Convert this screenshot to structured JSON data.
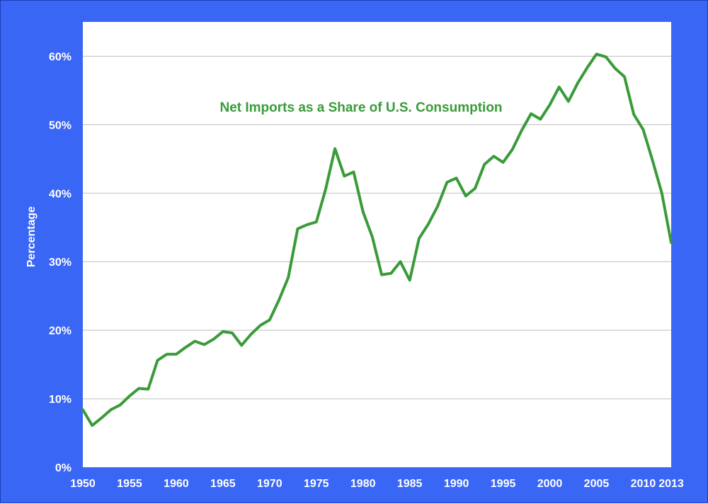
{
  "chart_data": {
    "type": "line",
    "title": "",
    "xlabel": "",
    "ylabel": "Percentage",
    "annotation": "Net Imports as a Share of U.S. Consumption",
    "xlim": [
      1950,
      2013
    ],
    "ylim": [
      0,
      65
    ],
    "y_ticks": [
      0,
      10,
      20,
      30,
      40,
      50,
      60
    ],
    "y_tick_labels": [
      "0%",
      "10%",
      "20%",
      "30%",
      "40%",
      "50%",
      "60%"
    ],
    "x_ticks": [
      1950,
      1955,
      1960,
      1965,
      1970,
      1975,
      1980,
      1985,
      1990,
      1995,
      2000,
      2005,
      2010,
      2013
    ],
    "x_tick_labels": [
      "1950",
      "1955",
      "1960",
      "1965",
      "1970",
      "1975",
      "1980",
      "1985",
      "1990",
      "1995",
      "2000",
      "2005",
      "2010",
      "2013"
    ],
    "grid": true,
    "colors": {
      "background": "#3a66f5",
      "plot": "#ffffff",
      "line": "#3a9b3a",
      "grid": "#bfbfbf"
    },
    "series": [
      {
        "x": [
          1950,
          1951,
          1952,
          1953,
          1954,
          1955,
          1956,
          1957,
          1958,
          1959,
          1960,
          1961,
          1962,
          1963,
          1964,
          1965,
          1966,
          1967,
          1968,
          1969,
          1970,
          1971,
          1972,
          1973,
          1974,
          1975,
          1976,
          1977,
          1978,
          1979,
          1980,
          1981,
          1982,
          1983,
          1984,
          1985,
          1986,
          1987,
          1988,
          1989,
          1990,
          1991,
          1992,
          1993,
          1994,
          1995,
          1996,
          1997,
          1998,
          1999,
          2000,
          2001,
          2002,
          2003,
          2004,
          2005,
          2006,
          2007,
          2008,
          2009,
          2010,
          2011,
          2012,
          2013
        ],
        "values": [
          8.4,
          6.1,
          7.2,
          8.4,
          9.1,
          10.4,
          11.5,
          11.4,
          15.6,
          16.5,
          16.5,
          17.5,
          18.4,
          17.9,
          18.7,
          19.8,
          19.6,
          17.8,
          19.4,
          20.7,
          21.5,
          24.4,
          27.7,
          34.8,
          35.4,
          35.8,
          40.6,
          46.5,
          42.5,
          43.1,
          37.3,
          33.6,
          28.1,
          28.3,
          30.0,
          27.3,
          33.4,
          35.5,
          38.1,
          41.6,
          42.2,
          39.6,
          40.7,
          44.2,
          45.4,
          44.5,
          46.4,
          49.2,
          51.6,
          50.8,
          52.9,
          55.5,
          53.4,
          56.1,
          58.3,
          60.3,
          59.9,
          58.2,
          57.0,
          51.5,
          49.3,
          44.8,
          40.0,
          32.8
        ]
      }
    ]
  }
}
